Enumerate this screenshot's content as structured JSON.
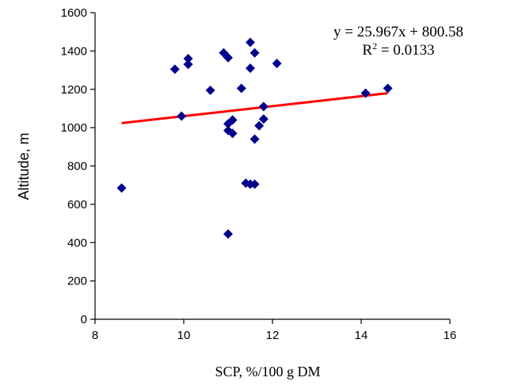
{
  "chart_data": {
    "type": "scatter",
    "xlabel": "SCP, %/100 g DM",
    "ylabel": "Altitude, m",
    "xlim": [
      8,
      16
    ],
    "ylim": [
      0,
      1600
    ],
    "x_ticks": [
      8,
      10,
      12,
      14,
      16
    ],
    "y_ticks": [
      0,
      200,
      400,
      600,
      800,
      1000,
      1200,
      1400,
      1600
    ],
    "grid": false,
    "legend": "none",
    "marker": "diamond",
    "marker_color": "#00008B",
    "trendline_color": "#FF0000",
    "points": [
      {
        "x": 8.6,
        "y": 685
      },
      {
        "x": 9.8,
        "y": 1305
      },
      {
        "x": 9.95,
        "y": 1060
      },
      {
        "x": 10.1,
        "y": 1360
      },
      {
        "x": 10.1,
        "y": 1330
      },
      {
        "x": 10.6,
        "y": 1195
      },
      {
        "x": 10.9,
        "y": 1390
      },
      {
        "x": 11.0,
        "y": 1365
      },
      {
        "x": 11.0,
        "y": 1020
      },
      {
        "x": 11.0,
        "y": 985
      },
      {
        "x": 11.0,
        "y": 445
      },
      {
        "x": 11.1,
        "y": 1040
      },
      {
        "x": 11.1,
        "y": 970
      },
      {
        "x": 11.3,
        "y": 1205
      },
      {
        "x": 11.4,
        "y": 710
      },
      {
        "x": 11.5,
        "y": 705
      },
      {
        "x": 11.5,
        "y": 1445
      },
      {
        "x": 11.5,
        "y": 1310
      },
      {
        "x": 11.6,
        "y": 1390
      },
      {
        "x": 11.6,
        "y": 940
      },
      {
        "x": 11.6,
        "y": 705
      },
      {
        "x": 11.7,
        "y": 1010
      },
      {
        "x": 11.8,
        "y": 1110
      },
      {
        "x": 11.8,
        "y": 1045
      },
      {
        "x": 12.1,
        "y": 1335
      },
      {
        "x": 14.1,
        "y": 1180
      },
      {
        "x": 14.6,
        "y": 1205
      }
    ],
    "trendline": {
      "slope": 25.967,
      "intercept": 800.58,
      "x_range": [
        8.6,
        14.6
      ]
    },
    "annotations": {
      "equation": "y = 25.967x + 800.58",
      "r_squared_prefix": "R",
      "r_squared_sup": "2",
      "r_squared_value": " = 0.0133"
    }
  }
}
